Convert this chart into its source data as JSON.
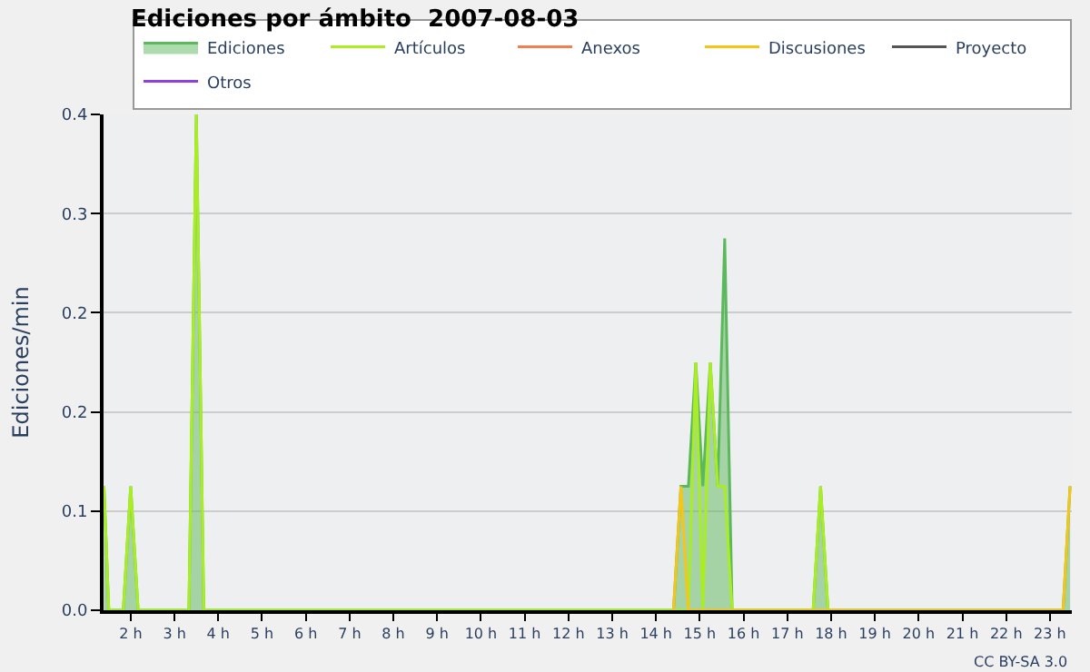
{
  "chart_data": {
    "type": "line",
    "title": "Ediciones por ámbito  2007-08-03",
    "ylabel": "Ediciones/min",
    "xlim": [
      1.38,
      23.5
    ],
    "xticks": [
      {
        "value": 2,
        "label": "2 h"
      },
      {
        "value": 3,
        "label": "3 h"
      },
      {
        "value": 4,
        "label": "4 h"
      },
      {
        "value": 5,
        "label": "5 h"
      },
      {
        "value": 6,
        "label": "6 h"
      },
      {
        "value": 7,
        "label": "7 h"
      },
      {
        "value": 8,
        "label": "8 h"
      },
      {
        "value": 9,
        "label": "9 h"
      },
      {
        "value": 10,
        "label": "10 h"
      },
      {
        "value": 11,
        "label": "11 h"
      },
      {
        "value": 12,
        "label": "12 h"
      },
      {
        "value": 13,
        "label": "13 h"
      },
      {
        "value": 14,
        "label": "14 h"
      },
      {
        "value": 15,
        "label": "15 h"
      },
      {
        "value": 16,
        "label": "16 h"
      },
      {
        "value": 17,
        "label": "17 h"
      },
      {
        "value": 18,
        "label": "18 h"
      },
      {
        "value": 19,
        "label": "19 h"
      },
      {
        "value": 20,
        "label": "20 h"
      },
      {
        "value": 21,
        "label": "21 h"
      },
      {
        "value": 22,
        "label": "22 h"
      },
      {
        "value": 23,
        "label": "23 h"
      }
    ],
    "ylim": [
      0,
      0.4
    ],
    "yticks": [
      {
        "value": 0,
        "label": "0.0"
      },
      {
        "value": 0.08,
        "label": "0.1"
      },
      {
        "value": 0.16,
        "label": "0.2"
      },
      {
        "value": 0.24,
        "label": "0.2"
      },
      {
        "value": 0.32,
        "label": "0.3"
      },
      0.4
    ],
    "grid": "y",
    "legend": "top right",
    "annotations": [
      "CC BY-SA 3.0"
    ],
    "series": [
      {
        "name": "Ediciones",
        "type": "area",
        "color": "#5cb85c",
        "x": [
          1.39,
          1.5,
          1.83,
          2.0,
          2.17,
          3.33,
          3.5,
          3.67,
          14.4,
          14.57,
          14.74,
          14.91,
          15.07,
          15.24,
          15.41,
          15.57,
          15.74,
          17.59,
          17.76,
          17.93,
          23.3,
          23.46
        ],
        "values": [
          0.1,
          0,
          0,
          0.1,
          0,
          0,
          0.4,
          0,
          0,
          0.1,
          0.1,
          0.2,
          0.1,
          0.2,
          0.1,
          0.3,
          0,
          0,
          0.1,
          0,
          0,
          0.1
        ]
      },
      {
        "name": "Artículos",
        "color": "#aaee22",
        "x": [
          1.39,
          1.5,
          1.83,
          2.0,
          2.17,
          3.33,
          3.5,
          3.67,
          14.74,
          14.91,
          15.07,
          15.24,
          15.41,
          15.57,
          15.74,
          17.59,
          17.76,
          17.93
        ],
        "values": [
          0.1,
          0,
          0,
          0.1,
          0,
          0,
          0.4,
          0,
          0,
          0.2,
          0,
          0.2,
          0.1,
          0.1,
          0,
          0,
          0.1,
          0
        ]
      },
      {
        "name": "Anexos",
        "color": "#f08050"
      },
      {
        "name": "Discusiones",
        "color": "#f5c518",
        "x": [
          14.4,
          14.57,
          14.74,
          23.3,
          23.46
        ],
        "values": [
          0,
          0.1,
          0,
          0,
          0.1
        ]
      },
      {
        "name": "Proyecto",
        "color": "#555555"
      },
      {
        "name": "Otros",
        "color": "#9040e0"
      }
    ]
  }
}
